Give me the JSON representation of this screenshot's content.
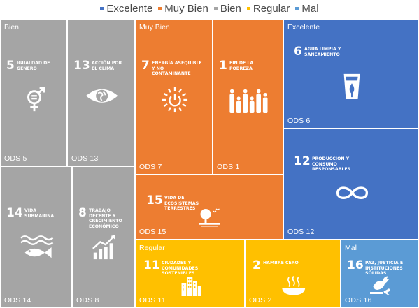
{
  "chart_data": {
    "type": "treemap",
    "legend": [
      {
        "name": "Excelente",
        "color": "#4472c4"
      },
      {
        "name": "Muy Bien",
        "color": "#ed7d31"
      },
      {
        "name": "Bien",
        "color": "#a5a5a5"
      },
      {
        "name": "Regular",
        "color": "#ffc000"
      },
      {
        "name": "Mal",
        "color": "#5b9bd5"
      }
    ],
    "groups": [
      {
        "name": "Bien",
        "color": "#a5a5a5",
        "items": [
          {
            "label": "ODS 5",
            "number": "5",
            "title": "Igualdad de género",
            "icon": "gender-equality-icon"
          },
          {
            "label": "ODS 13",
            "number": "13",
            "title": "Acción por el clima",
            "icon": "climate-eye-icon"
          },
          {
            "label": "ODS 14",
            "number": "14",
            "title": "Vida submarina",
            "icon": "fish-icon"
          },
          {
            "label": "ODS 8",
            "number": "8",
            "title": "Trabajo decente y crecimiento económico",
            "icon": "growth-chart-icon"
          }
        ]
      },
      {
        "name": "Muy Bien",
        "color": "#ed7d31",
        "items": [
          {
            "label": "ODS 7",
            "number": "7",
            "title": "Energía asequible y no contaminante",
            "icon": "sun-power-icon"
          },
          {
            "label": "ODS 1",
            "number": "1",
            "title": "Fin de la pobreza",
            "icon": "family-icon"
          },
          {
            "label": "ODS 15",
            "number": "15",
            "title": "Vida de ecosistemas terrestres",
            "icon": "tree-birds-icon"
          }
        ]
      },
      {
        "name": "Excelente",
        "color": "#4472c4",
        "items": [
          {
            "label": "ODS 6",
            "number": "6",
            "title": "Agua limpia y saneamiento",
            "icon": "water-glass-icon"
          },
          {
            "label": "ODS 12",
            "number": "12",
            "title": "Producción y consumo responsables",
            "icon": "infinity-icon"
          }
        ]
      },
      {
        "name": "Regular",
        "color": "#ffc000",
        "items": [
          {
            "label": "ODS 11",
            "number": "11",
            "title": "Ciudades y comunidades sostenibles",
            "icon": "city-buildings-icon"
          },
          {
            "label": "ODS 2",
            "number": "2",
            "title": "Hambre cero",
            "icon": "food-bowl-icon"
          }
        ]
      },
      {
        "name": "Mal",
        "color": "#5b9bd5",
        "items": [
          {
            "label": "ODS 16",
            "number": "16",
            "title": "Paz, justicia e instituciones sólidas",
            "icon": "dove-gavel-icon"
          }
        ]
      }
    ]
  }
}
